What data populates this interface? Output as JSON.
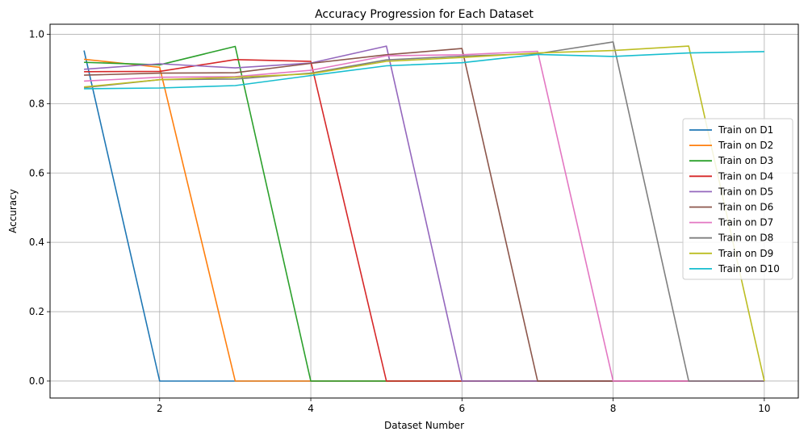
{
  "chart_data": {
    "type": "line",
    "title": "Accuracy Progression for Each Dataset",
    "xlabel": "Dataset Number",
    "ylabel": "Accuracy",
    "xlim": [
      0.55,
      10.45
    ],
    "ylim": [
      -0.049,
      1.029
    ],
    "xticks": [
      2,
      4,
      6,
      8,
      10
    ],
    "yticks": [
      0.0,
      0.2,
      0.4,
      0.6,
      0.8,
      1.0
    ],
    "xtick_labels": [
      "2",
      "4",
      "6",
      "8",
      "10"
    ],
    "ytick_labels": [
      "0.0",
      "0.2",
      "0.4",
      "0.6",
      "0.8",
      "1.0"
    ],
    "grid": true,
    "legend_position": "center-right",
    "x": [
      1,
      2,
      3,
      4,
      5,
      6,
      7,
      8,
      9,
      10
    ],
    "series": [
      {
        "name": "Train on D1",
        "color": "#1f77b4",
        "values": [
          0.953,
          0.0,
          0.0,
          0.0,
          0.0,
          0.0,
          0.0,
          0.0,
          0.0,
          0.0
        ]
      },
      {
        "name": "Train on D2",
        "color": "#ff7f0e",
        "values": [
          0.928,
          0.905,
          0.0,
          0.0,
          0.0,
          0.0,
          0.0,
          0.0,
          0.0,
          0.0
        ]
      },
      {
        "name": "Train on D3",
        "color": "#2ca02c",
        "values": [
          0.919,
          0.912,
          0.965,
          0.0,
          0.0,
          0.0,
          0.0,
          0.0,
          0.0,
          0.0
        ]
      },
      {
        "name": "Train on D4",
        "color": "#d62728",
        "values": [
          0.892,
          0.893,
          0.927,
          0.922,
          0.0,
          0.0,
          0.0,
          0.0,
          0.0,
          0.0
        ]
      },
      {
        "name": "Train on D5",
        "color": "#9467bd",
        "values": [
          0.899,
          0.915,
          0.903,
          0.917,
          0.966,
          0.0,
          0.0,
          0.0,
          0.0,
          0.0
        ]
      },
      {
        "name": "Train on D6",
        "color": "#8c564b",
        "values": [
          0.882,
          0.888,
          0.889,
          0.916,
          0.941,
          0.959,
          0.0,
          0.0,
          0.0,
          0.0
        ]
      },
      {
        "name": "Train on D7",
        "color": "#e377c2",
        "values": [
          0.865,
          0.876,
          0.878,
          0.896,
          0.938,
          0.941,
          0.951,
          0.0,
          0.0,
          0.0
        ]
      },
      {
        "name": "Train on D8",
        "color": "#7f7f7f",
        "values": [
          0.846,
          0.869,
          0.871,
          0.888,
          0.926,
          0.937,
          0.944,
          0.978,
          0.0,
          0.0
        ]
      },
      {
        "name": "Train on D9",
        "color": "#bcbd22",
        "values": [
          0.848,
          0.869,
          0.876,
          0.886,
          0.922,
          0.933,
          0.946,
          0.953,
          0.966,
          0.0
        ]
      },
      {
        "name": "Train on D10",
        "color": "#17becf",
        "values": [
          0.843,
          0.845,
          0.852,
          0.881,
          0.909,
          0.918,
          0.942,
          0.936,
          0.946,
          0.95
        ]
      }
    ]
  }
}
